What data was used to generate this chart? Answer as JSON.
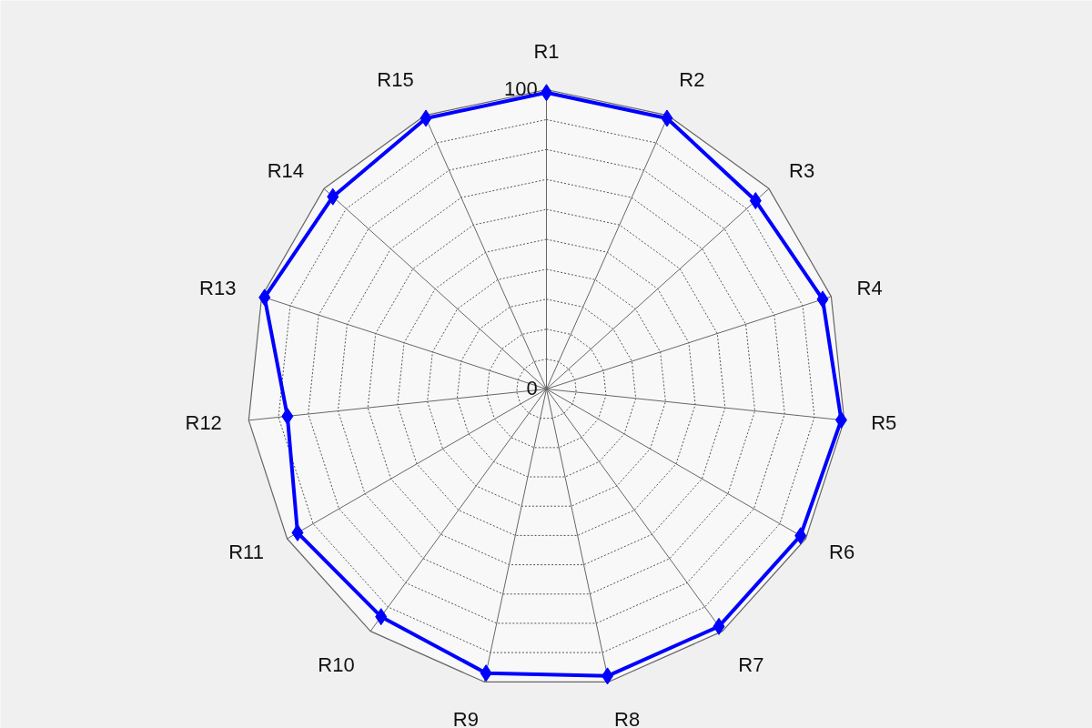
{
  "chart_data": {
    "type": "radar",
    "categories": [
      "R1",
      "R2",
      "R3",
      "R4",
      "R5",
      "R6",
      "R7",
      "R8",
      "R9",
      "R10",
      "R11",
      "R12",
      "R13",
      "R14",
      "R15"
    ],
    "series": [
      {
        "color": "#0000ff",
        "values": [
          99,
          99,
          94,
          97,
          99,
          98,
          98,
          98,
          97,
          94,
          96,
          87,
          99,
          96,
          99
        ]
      }
    ],
    "ylim": [
      0,
      100
    ],
    "yticks": [
      0,
      100
    ],
    "grid": true,
    "marker": "diamond",
    "line_style": "solid"
  }
}
